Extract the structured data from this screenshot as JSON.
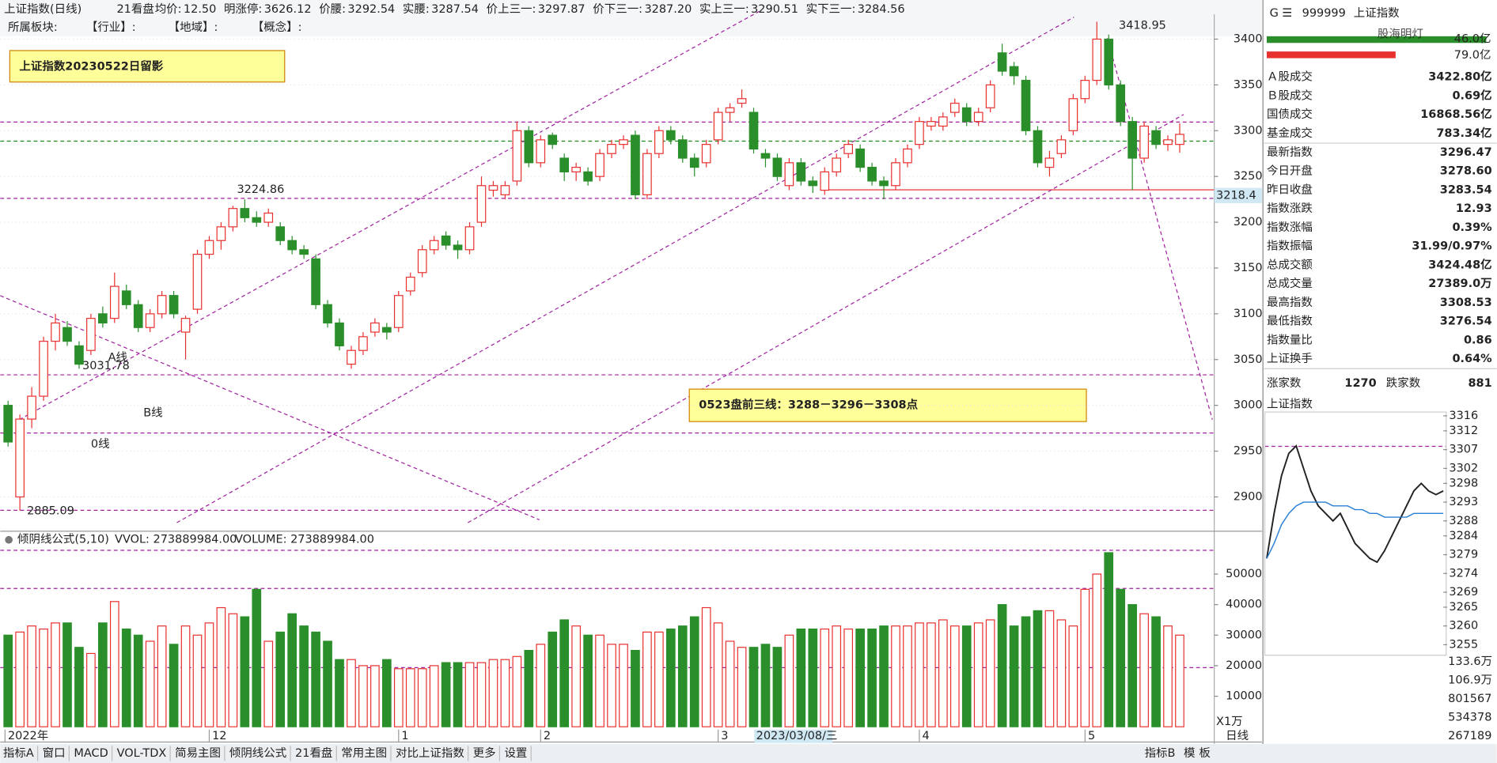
{
  "header": {
    "title": "上证指数(日线)",
    "view": "21看盘",
    "items": [
      {
        "label": "均价:",
        "value": "12.50",
        "color": "#222222"
      },
      {
        "label": "明涨停:",
        "value": "3626.12",
        "color": "#e02020"
      },
      {
        "label": "价腰:",
        "value": "3292.54",
        "color": "#8a2be2"
      },
      {
        "label": "实腰:",
        "value": "3287.54",
        "color": "#e02020"
      },
      {
        "label": "价上三一:",
        "value": "3297.87",
        "color": "#1a8a1a"
      },
      {
        "label": "价下三一:",
        "value": "3287.20",
        "color": "#20b0c0"
      },
      {
        "label": "实上三一:",
        "value": "3290.51",
        "color": "#222222"
      },
      {
        "label": "实下三一:",
        "value": "3284.56",
        "color": "#e02020"
      }
    ],
    "sector": [
      "所属板块:",
      "【行业】:",
      "【地域】:",
      "【概念】:"
    ]
  },
  "annotations": {
    "banner": "上证指数20230522日留影",
    "plan": "0523盘前三线：3288－3296－3308点",
    "high_mark": "3224.86",
    "low_mark": "3031.78",
    "bottom_mark": "2885.09",
    "top_mark": "3418.95",
    "line_a": "A线",
    "line_b": "B线",
    "line_0": "0线",
    "axis_flag": "3218.4",
    "cursor_date": "2023/03/08/三"
  },
  "main_chart": {
    "type": "candlestick",
    "ylim": [
      2864.6,
      3427.1
    ],
    "yticks": [
      2900,
      2950,
      3000,
      3050,
      3100,
      3150,
      3200,
      3250,
      3300,
      3350,
      3400
    ],
    "up_color": "#e8312f",
    "down_color": "#2a8f2a",
    "categories": [
      "2022年",
      null,
      null,
      null,
      null,
      null,
      null,
      null,
      null,
      null,
      null,
      null,
      null,
      null,
      null,
      null,
      null,
      "12",
      null,
      null,
      null,
      null,
      null,
      null,
      null,
      null,
      null,
      null,
      null,
      null,
      null,
      null,
      null,
      "1",
      null,
      null,
      null,
      null,
      null,
      null,
      null,
      null,
      null,
      null,
      null,
      "2",
      null,
      null,
      null,
      null,
      null,
      null,
      null,
      null,
      null,
      null,
      null,
      null,
      null,
      null,
      "3",
      null,
      null,
      null,
      null,
      null,
      null,
      null,
      null,
      null,
      null,
      null,
      null,
      null,
      null,
      null,
      null,
      "4",
      null,
      null,
      null,
      null,
      null,
      null,
      null,
      null,
      null,
      null,
      null,
      null,
      null,
      "5",
      null,
      null,
      null,
      null,
      null,
      null,
      null,
      null
    ],
    "ohlc": [
      [
        3000,
        3005,
        2955,
        2960
      ],
      [
        2900,
        2990,
        2885,
        2985
      ],
      [
        2985,
        3020,
        2975,
        3010
      ],
      [
        3010,
        3075,
        3005,
        3070
      ],
      [
        3070,
        3100,
        3060,
        3090
      ],
      [
        3085,
        3092,
        3065,
        3070
      ],
      [
        3065,
        3070,
        3040,
        3045
      ],
      [
        3060,
        3100,
        3055,
        3095
      ],
      [
        3100,
        3108,
        3085,
        3090
      ],
      [
        3095,
        3145,
        3090,
        3130
      ],
      [
        3125,
        3132,
        3105,
        3110
      ],
      [
        3110,
        3115,
        3080,
        3085
      ],
      [
        3085,
        3105,
        3080,
        3100
      ],
      [
        3100,
        3125,
        3095,
        3120
      ],
      [
        3120,
        3125,
        3095,
        3100
      ],
      [
        3080,
        3098,
        3050,
        3095
      ],
      [
        3105,
        3170,
        3100,
        3165
      ],
      [
        3165,
        3185,
        3160,
        3180
      ],
      [
        3180,
        3200,
        3170,
        3195
      ],
      [
        3195,
        3218,
        3190,
        3215
      ],
      [
        3215,
        3225,
        3200,
        3205
      ],
      [
        3205,
        3212,
        3195,
        3200
      ],
      [
        3200,
        3215,
        3195,
        3210
      ],
      [
        3195,
        3200,
        3175,
        3180
      ],
      [
        3180,
        3185,
        3165,
        3170
      ],
      [
        3170,
        3175,
        3160,
        3165
      ],
      [
        3160,
        3165,
        3105,
        3110
      ],
      [
        3110,
        3115,
        3085,
        3090
      ],
      [
        3090,
        3095,
        3060,
        3065
      ],
      [
        3045,
        3065,
        3040,
        3060
      ],
      [
        3060,
        3080,
        3055,
        3075
      ],
      [
        3080,
        3095,
        3075,
        3090
      ],
      [
        3085,
        3090,
        3072,
        3080
      ],
      [
        3085,
        3125,
        3080,
        3120
      ],
      [
        3125,
        3145,
        3120,
        3140
      ],
      [
        3145,
        3175,
        3140,
        3170
      ],
      [
        3170,
        3185,
        3165,
        3180
      ],
      [
        3185,
        3190,
        3170,
        3175
      ],
      [
        3175,
        3180,
        3160,
        3170
      ],
      [
        3170,
        3200,
        3165,
        3195
      ],
      [
        3200,
        3250,
        3195,
        3240
      ],
      [
        3235,
        3245,
        3228,
        3240
      ],
      [
        3230,
        3245,
        3225,
        3240
      ],
      [
        3245,
        3310,
        3240,
        3300
      ],
      [
        3300,
        3305,
        3260,
        3265
      ],
      [
        3265,
        3295,
        3260,
        3290
      ],
      [
        3295,
        3298,
        3280,
        3285
      ],
      [
        3270,
        3275,
        3245,
        3255
      ],
      [
        3255,
        3265,
        3245,
        3260
      ],
      [
        3255,
        3260,
        3240,
        3245
      ],
      [
        3250,
        3280,
        3245,
        3275
      ],
      [
        3275,
        3290,
        3270,
        3285
      ],
      [
        3285,
        3295,
        3280,
        3290
      ],
      [
        3295,
        3300,
        3225,
        3230
      ],
      [
        3230,
        3280,
        3225,
        3275
      ],
      [
        3275,
        3305,
        3270,
        3300
      ],
      [
        3300,
        3305,
        3285,
        3290
      ],
      [
        3290,
        3295,
        3265,
        3270
      ],
      [
        3270,
        3275,
        3250,
        3260
      ],
      [
        3265,
        3290,
        3260,
        3285
      ],
      [
        3290,
        3325,
        3285,
        3320
      ],
      [
        3320,
        3330,
        3310,
        3325
      ],
      [
        3330,
        3345,
        3325,
        3335
      ],
      [
        3320,
        3325,
        3275,
        3280
      ],
      [
        3275,
        3280,
        3260,
        3270
      ],
      [
        3270,
        3275,
        3245,
        3250
      ],
      [
        3240,
        3270,
        3235,
        3265
      ],
      [
        3265,
        3270,
        3240,
        3245
      ],
      [
        3245,
        3250,
        3232,
        3240
      ],
      [
        3235,
        3260,
        3230,
        3255
      ],
      [
        3255,
        3275,
        3250,
        3270
      ],
      [
        3275,
        3290,
        3270,
        3285
      ],
      [
        3280,
        3285,
        3255,
        3260
      ],
      [
        3260,
        3265,
        3240,
        3245
      ],
      [
        3245,
        3250,
        3225,
        3240
      ],
      [
        3240,
        3270,
        3235,
        3265
      ],
      [
        3265,
        3285,
        3260,
        3280
      ],
      [
        3285,
        3315,
        3280,
        3310
      ],
      [
        3305,
        3315,
        3300,
        3310
      ],
      [
        3305,
        3320,
        3300,
        3315
      ],
      [
        3320,
        3335,
        3315,
        3330
      ],
      [
        3325,
        3330,
        3305,
        3310
      ],
      [
        3310,
        3325,
        3305,
        3320
      ],
      [
        3325,
        3355,
        3320,
        3350
      ],
      [
        3385,
        3395,
        3360,
        3365
      ],
      [
        3370,
        3375,
        3350,
        3360
      ],
      [
        3355,
        3360,
        3295,
        3300
      ],
      [
        3300,
        3305,
        3260,
        3265
      ],
      [
        3260,
        3278,
        3250,
        3270
      ],
      [
        3275,
        3295,
        3270,
        3290
      ],
      [
        3300,
        3340,
        3295,
        3335
      ],
      [
        3335,
        3360,
        3330,
        3355
      ],
      [
        3355,
        3419,
        3350,
        3400
      ],
      [
        3400,
        3405,
        3345,
        3350
      ],
      [
        3350,
        3355,
        3305,
        3310
      ],
      [
        3310,
        3315,
        3235,
        3270
      ],
      [
        3270,
        3310,
        3265,
        3305
      ],
      [
        3300,
        3305,
        3280,
        3285
      ],
      [
        3285,
        3295,
        3278,
        3290
      ],
      [
        3285,
        3308,
        3276,
        3296
      ]
    ]
  },
  "volume_chart": {
    "title": "倾阴线公式(5,10)",
    "vvol": "VVOL: 273889984.00",
    "volume": "VOLUME: 273889984.00",
    "unit": "X1万",
    "ylim": [
      0,
      58400
    ],
    "yticks": [
      10000,
      20000,
      30000,
      40000,
      50000
    ],
    "values": [
      30000,
      31000,
      33000,
      32000,
      34000,
      34000,
      26000,
      24000,
      34000,
      41000,
      32000,
      30000,
      28000,
      33000,
      27000,
      33000,
      30000,
      34000,
      39000,
      37000,
      36000,
      45000,
      28000,
      31000,
      37000,
      33000,
      31000,
      28000,
      22000,
      22000,
      20000,
      20000,
      22000,
      19000,
      19000,
      19000,
      20000,
      21000,
      21000,
      21000,
      21000,
      22000,
      22000,
      23000,
      25000,
      27000,
      31000,
      35000,
      33000,
      30000,
      30000,
      27000,
      27000,
      25000,
      31000,
      31000,
      32000,
      33000,
      36000,
      39000,
      34000,
      28000,
      26000,
      26000,
      27000,
      26000,
      30000,
      32000,
      32000,
      32000,
      33000,
      32000,
      32000,
      32000,
      33000,
      33000,
      33000,
      34000,
      34000,
      35000,
      33000,
      33000,
      34000,
      35000,
      40000,
      33000,
      36000,
      38000,
      38000,
      35000,
      33000,
      45000,
      50000,
      57000,
      45000,
      40000,
      37000,
      36000,
      33000,
      30000
    ]
  },
  "quote_panel": {
    "code": "999999",
    "name": "上证指数",
    "watermark": "股海明灯",
    "buy_amount": "46.0亿",
    "sell_amount": "79.0亿",
    "rows": [
      {
        "label": "Ａ股成交",
        "value": "3422.80亿",
        "color": "#222222"
      },
      {
        "label": "Ｂ股成交",
        "value": "0.69亿",
        "color": "#222222"
      },
      {
        "label": "国债成交",
        "value": "16868.56亿",
        "color": "#222222"
      },
      {
        "label": "基金成交",
        "value": "783.34亿",
        "color": "#222222"
      },
      {
        "label": "最新指数",
        "value": "3296.47",
        "color": "#e02020"
      },
      {
        "label": "今日开盘",
        "value": "3278.60",
        "color": "#1a8a1a"
      },
      {
        "label": "昨日收盘",
        "value": "3283.54",
        "color": "#222222"
      },
      {
        "label": "指数涨跌",
        "value": "12.93",
        "color": "#e02020"
      },
      {
        "label": "指数涨幅",
        "value": "0.39%",
        "color": "#e02020"
      },
      {
        "label": "指数振幅",
        "value": "31.99/0.97%",
        "color": "#222222"
      },
      {
        "label": "总成交额",
        "value": "3424.48亿",
        "color": "#222222"
      },
      {
        "label": "总成交量",
        "value": "27389.0万",
        "color": "#222222"
      },
      {
        "label": "最高指数",
        "value": "3308.53",
        "color": "#e02020"
      },
      {
        "label": "最低指数",
        "value": "3276.54",
        "color": "#1a8a1a"
      },
      {
        "label": "指数量比",
        "value": "0.86",
        "color": "#1a8a1a"
      },
      {
        "label": "上证换手",
        "value": "0.64%",
        "color": "#222222"
      }
    ],
    "advance_label": "涨家数",
    "advance": "1270",
    "decline_label": "跌家数",
    "decline": "881"
  },
  "intraday_chart": {
    "type": "line",
    "title": "上证指数",
    "ylim": [
      3255,
      3316
    ],
    "yticks": [
      3255,
      3260,
      3265,
      3269,
      3274,
      3279,
      3284,
      3288,
      3293,
      3298,
      3302,
      3307,
      3312,
      3316
    ],
    "series": [
      {
        "color": "#222222",
        "values": [
          3278,
          3290,
          3300,
          3306,
          3308,
          3302,
          3296,
          3292,
          3290,
          3288,
          3290,
          3286,
          3282,
          3280,
          3278,
          3277,
          3280,
          3284,
          3288,
          3292,
          3296,
          3298,
          3296,
          3295,
          3296
        ]
      },
      {
        "color": "#2a7fd4",
        "values": [
          3278,
          3282,
          3287,
          3290,
          3292,
          3293,
          3293,
          3293,
          3293,
          3292,
          3292,
          3292,
          3291,
          3291,
          3290,
          3290,
          3289,
          3289,
          3289,
          3289,
          3290,
          3290,
          3290,
          3290,
          3290
        ]
      }
    ],
    "volume_ticks": [
      "133.6万",
      "106.9万",
      "801567",
      "534378",
      "267189"
    ]
  },
  "tabs": [
    "指标A",
    "窗口",
    "MACD",
    "VOL-TDX",
    "简易主图",
    "倾阴线公式",
    "21看盘",
    "常用主图",
    "对比上证指数",
    "更多",
    "设置"
  ],
  "right_tabs": [
    "指标B",
    "模",
    "板"
  ],
  "period": "日线"
}
